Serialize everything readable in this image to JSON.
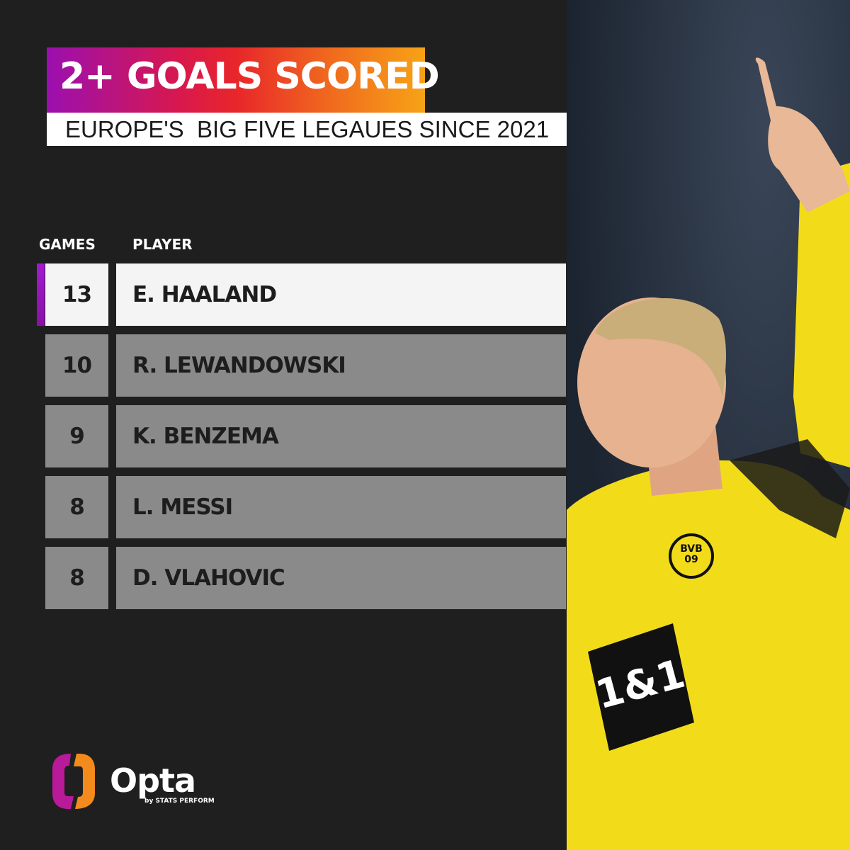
{
  "header": {
    "title": "2+ GOALS SCORED",
    "subtitle": "EUROPE'S  BIG FIVE LEGAUES SINCE 2021"
  },
  "table": {
    "columns": [
      "GAMES",
      "PLAYER"
    ],
    "rows": [
      {
        "games": "13",
        "player": "E. HAALAND",
        "highlighted": true
      },
      {
        "games": "10",
        "player": "R. LEWANDOWSKI",
        "highlighted": false
      },
      {
        "games": "9",
        "player": "K. BENZEMA",
        "highlighted": false
      },
      {
        "games": "8",
        "player": "L. MESSI",
        "highlighted": false
      },
      {
        "games": "8",
        "player": "D. VLAHOVIC",
        "highlighted": false
      }
    ]
  },
  "logo": {
    "name": "Opta",
    "tagline": "by STATS PERFORM"
  },
  "photo": {
    "badge": "BVB 09",
    "sponsor": "1&1"
  },
  "colors": {
    "accent_start": "#9b0fb0",
    "accent_end": "#f7a316",
    "row_highlight": "#f4f4f4",
    "row_default": "#8a8a8a",
    "background": "#1f1f1f",
    "jersey": "#f2dc1a"
  }
}
